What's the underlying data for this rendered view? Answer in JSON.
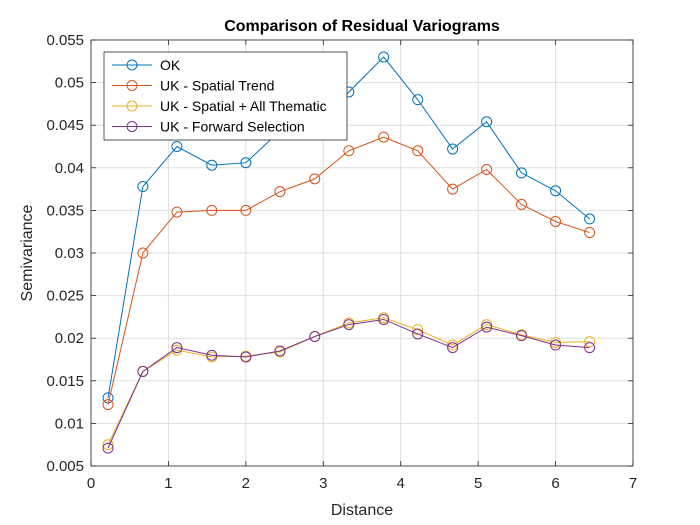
{
  "chart_data": {
    "type": "line",
    "title": "Comparison of Residual Variograms",
    "xlabel": "Distance",
    "ylabel": "Semivariance",
    "xlim": [
      0,
      7
    ],
    "ylim": [
      0.005,
      0.055
    ],
    "xticks": [
      0,
      1,
      2,
      3,
      4,
      5,
      6,
      7
    ],
    "xtick_labels": [
      "0",
      "1",
      "2",
      "3",
      "4",
      "5",
      "6",
      "7"
    ],
    "yticks": [
      0.005,
      0.01,
      0.015,
      0.02,
      0.025,
      0.03,
      0.035,
      0.04,
      0.045,
      0.05,
      0.055
    ],
    "ytick_labels": [
      "0.005",
      "0.01",
      "0.015",
      "0.02",
      "0.025",
      "0.03",
      "0.035",
      "0.04",
      "0.045",
      "0.05",
      "0.055"
    ],
    "grid": true,
    "legend_position": "top-left",
    "x": [
      0.22,
      0.67,
      1.11,
      1.56,
      2.0,
      2.44,
      2.89,
      3.33,
      3.78,
      4.22,
      4.67,
      5.11,
      5.56,
      6.0,
      6.44
    ],
    "series": [
      {
        "name": "OK",
        "color": "#0072BD",
        "marker": "circle",
        "values": [
          0.013,
          0.0378,
          0.0425,
          0.0403,
          0.0406,
          0.0443,
          0.0448,
          0.0489,
          0.053,
          0.048,
          0.0422,
          0.0454,
          0.0394,
          0.0373,
          0.034
        ]
      },
      {
        "name": "UK - Spatial Trend",
        "color": "#D95319",
        "marker": "circle",
        "values": [
          0.0122,
          0.03,
          0.0348,
          0.035,
          0.035,
          0.0372,
          0.0387,
          0.042,
          0.0436,
          0.042,
          0.0375,
          0.0398,
          0.0357,
          0.0337,
          0.0324
        ]
      },
      {
        "name": "UK - Spatial + All Thematic",
        "color": "#EDB120",
        "marker": "circle",
        "values": [
          0.0075,
          0.0161,
          0.0186,
          0.0178,
          0.0179,
          0.0184,
          0.0202,
          0.0218,
          0.0224,
          0.021,
          0.0192,
          0.0216,
          0.0204,
          0.0195,
          0.0196
        ]
      },
      {
        "name": "UK - Forward Selection",
        "color": "#7E2F8E",
        "marker": "circle",
        "values": [
          0.0071,
          0.0161,
          0.0189,
          0.018,
          0.0178,
          0.0185,
          0.0202,
          0.0216,
          0.0222,
          0.0205,
          0.0189,
          0.0213,
          0.0203,
          0.0192,
          0.0189
        ]
      }
    ]
  }
}
